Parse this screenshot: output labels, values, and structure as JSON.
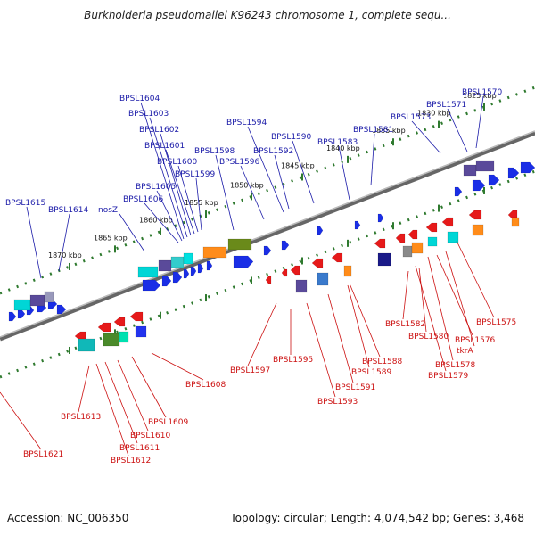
{
  "title": "Burkholderia pseudomallei K96243 chromosome 1, complete sequ...",
  "footer": {
    "accession": "Accession: NC_006350",
    "summary": "Topology: circular; Length: 4,074,542 bp; Genes: 3,468"
  },
  "colors": {
    "forward_label": "#1a1aa8",
    "reverse_label": "#cc1111",
    "forward_gene": "#1a2ee6",
    "reverse_gene": "#e61a1a",
    "tick": "#2f7a2f",
    "backbone": "#777777"
  },
  "scale_labels": [
    {
      "text": "1825 kbp",
      "t": 0.905
    },
    {
      "text": "1830 kbp",
      "t": 0.82
    },
    {
      "text": "1835 kbp",
      "t": 0.735
    },
    {
      "text": "1840 kbp",
      "t": 0.65
    },
    {
      "text": "1845 kbp",
      "t": 0.565
    },
    {
      "text": "1850 kbp",
      "t": 0.47
    },
    {
      "text": "1855 kbp",
      "t": 0.385
    },
    {
      "text": "1860 kbp",
      "t": 0.3
    },
    {
      "text": "1865 kbp",
      "t": 0.215
    },
    {
      "text": "1870 kbp",
      "t": 0.13
    }
  ],
  "forward_labels": [
    "BPSL1604",
    "BPSL1603",
    "BPSL1602",
    "BPSL1601",
    "BPSL1600",
    "BPSL1599",
    "BPSL1605",
    "BPSL1606",
    "BPSL1598",
    "BPSL1596",
    "BPSL1594",
    "BPSL1592",
    "BPSL1590",
    "BPSL1583",
    "BPSL1581",
    "BPSL1573",
    "BPSL1571",
    "BPSL1570",
    "BPSL1615",
    "BPSL1614",
    "nosZ"
  ],
  "reverse_labels": [
    "BPSL1582",
    "BPSL1580",
    "BPSL1576",
    "tkrA",
    "BPSL1575",
    "BPSL1578",
    "BPSL1579",
    "BPSL1588",
    "BPSL1589",
    "BPSL1591",
    "BPSL1593",
    "BPSL1595",
    "BPSL1597",
    "BPSL1608",
    "BPSL1609",
    "BPSL1610",
    "BPSL1611",
    "BPSL1612",
    "BPSL1613",
    "BPSL1621"
  ]
}
